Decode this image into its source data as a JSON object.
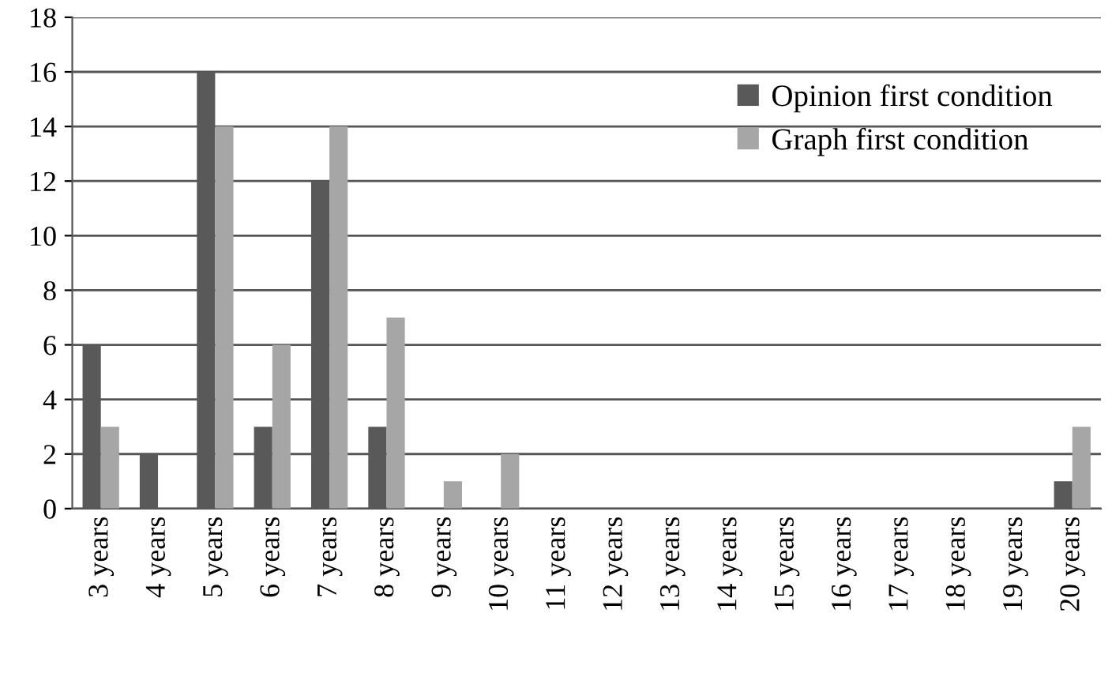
{
  "chart_data": {
    "type": "bar",
    "categories": [
      "3 years",
      "4 years",
      "5 years",
      "6 years",
      "7 years",
      "8 years",
      "9 years",
      "10 years",
      "11 years",
      "12 years",
      "13 years",
      "14 years",
      "15 years",
      "16 years",
      "17 years",
      "18 years",
      "19 years",
      "20 years"
    ],
    "series": [
      {
        "name": "Opinion first condition",
        "color": "#595959",
        "values": [
          6,
          2,
          16,
          3,
          12,
          3,
          0,
          0,
          0,
          0,
          0,
          0,
          0,
          0,
          0,
          0,
          0,
          1
        ]
      },
      {
        "name": "Graph first condition",
        "color": "#a6a6a6",
        "values": [
          3,
          0,
          14,
          6,
          14,
          7,
          1,
          2,
          0,
          0,
          0,
          0,
          0,
          0,
          0,
          0,
          0,
          3
        ]
      }
    ],
    "ylim": [
      0,
      18
    ],
    "yticks": [
      0,
      2,
      4,
      6,
      8,
      10,
      12,
      14,
      16,
      18
    ],
    "grid": "y",
    "legend": "top right"
  }
}
